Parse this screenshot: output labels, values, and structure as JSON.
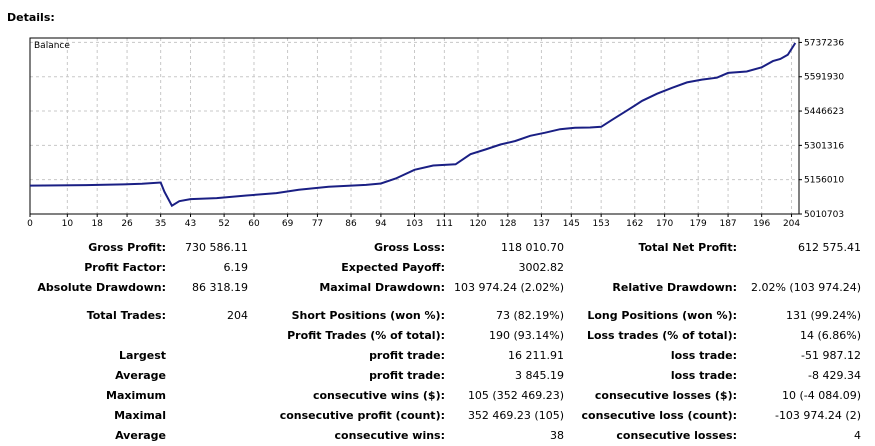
{
  "details_label": "Details:",
  "chart_data": {
    "type": "line",
    "legend": "Balance",
    "x_ticks": [
      0,
      10,
      18,
      26,
      35,
      43,
      52,
      60,
      69,
      77,
      86,
      94,
      103,
      111,
      120,
      128,
      137,
      145,
      153,
      162,
      170,
      179,
      187,
      196,
      204
    ],
    "y_ticks": [
      5010703,
      5156010,
      5301316,
      5446623,
      5591930,
      5737236
    ],
    "xlim": [
      0,
      206
    ],
    "ylim": [
      5010703,
      5756000
    ],
    "grid": true,
    "series": [
      {
        "color": "#1a1f84",
        "x": [
          0,
          15,
          25,
          30,
          35,
          36,
          38,
          40,
          43,
          50,
          58,
          66,
          72,
          80,
          90,
          94,
          98,
          103,
          108,
          114,
          118,
          122,
          126,
          130,
          134,
          138,
          142,
          146,
          150,
          153,
          156,
          160,
          164,
          168,
          172,
          176,
          180,
          184,
          187,
          192,
          196,
          199,
          201,
          203,
          205
        ],
        "y": [
          5131000,
          5133000,
          5136000,
          5139000,
          5144000,
          5105000,
          5046000,
          5065000,
          5074000,
          5078000,
          5089000,
          5099000,
          5113000,
          5126000,
          5134000,
          5140000,
          5161000,
          5198000,
          5216000,
          5221000,
          5264000,
          5284000,
          5305000,
          5320000,
          5342000,
          5355000,
          5370000,
          5376000,
          5377000,
          5380000,
          5410000,
          5450000,
          5490000,
          5520000,
          5545000,
          5568000,
          5580000,
          5588000,
          5608000,
          5614000,
          5632000,
          5658000,
          5667000,
          5685000,
          5735000
        ]
      }
    ]
  },
  "rows": [
    [
      {
        "l": "Gross Profit:",
        "v": "730 586.11"
      },
      {
        "l": "Gross Loss:",
        "v": "118 010.70"
      },
      {
        "l": "Total Net Profit:",
        "v": "612 575.41"
      }
    ],
    [
      {
        "l": "Profit Factor:",
        "v": "6.19"
      },
      {
        "l": "Expected Payoff:",
        "v": "3002.82"
      },
      null
    ],
    [
      {
        "l": "Absolute Drawdown:",
        "v": "86 318.19"
      },
      {
        "l": "Maximal Drawdown:",
        "v": "103 974.24 (2.02%)"
      },
      {
        "l": "Relative Drawdown:",
        "v": "2.02% (103 974.24)"
      }
    ],
    [
      {
        "l": "Total Trades:",
        "v": "204"
      },
      {
        "l": "Short Positions (won %):",
        "v": "73 (82.19%)"
      },
      {
        "l": "Long Positions (won %):",
        "v": "131 (99.24%)"
      }
    ],
    [
      null,
      {
        "l": "Profit Trades (% of total):",
        "v": "190 (93.14%)"
      },
      {
        "l": "Loss trades (% of total):",
        "v": "14 (6.86%)"
      }
    ],
    [
      {
        "l": "Largest",
        "v": ""
      },
      {
        "l": "profit trade:",
        "v": "16 211.91"
      },
      {
        "l": "loss trade:",
        "v": "-51 987.12"
      }
    ],
    [
      {
        "l": "Average",
        "v": ""
      },
      {
        "l": "profit trade:",
        "v": "3 845.19"
      },
      {
        "l": "loss trade:",
        "v": "-8 429.34"
      }
    ],
    [
      {
        "l": "Maximum",
        "v": ""
      },
      {
        "l": "consecutive wins ($):",
        "v": "105 (352 469.23)"
      },
      {
        "l": "consecutive losses ($):",
        "v": "10 (-4 084.09)"
      }
    ],
    [
      {
        "l": "Maximal",
        "v": ""
      },
      {
        "l": "consecutive profit (count):",
        "v": "352 469.23 (105)"
      },
      {
        "l": "consecutive loss (count):",
        "v": "-103 974.24 (2)"
      }
    ],
    [
      {
        "l": "Average",
        "v": ""
      },
      {
        "l": "consecutive wins:",
        "v": "38"
      },
      {
        "l": "consecutive losses:",
        "v": "4"
      }
    ]
  ]
}
